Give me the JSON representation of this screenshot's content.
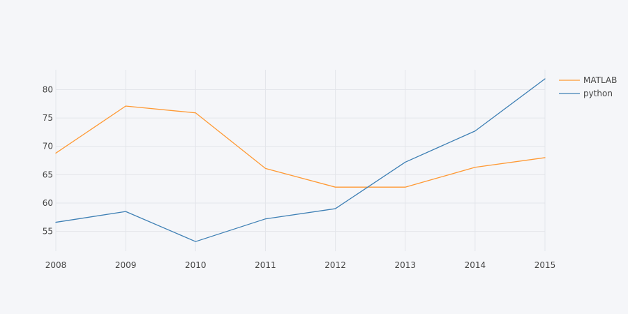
{
  "chart_data": {
    "type": "line",
    "title": "",
    "xlabel": "",
    "ylabel": "",
    "x": [
      2008,
      2009,
      2010,
      2011,
      2012,
      2013,
      2014,
      2015
    ],
    "xlim": [
      2008,
      2015
    ],
    "ylim": [
      51.5,
      83.5
    ],
    "xticks": [
      2008,
      2009,
      2010,
      2011,
      2012,
      2013,
      2014,
      2015
    ],
    "yticks": [
      55,
      60,
      65,
      70,
      75,
      80
    ],
    "grid": true,
    "legend_position": "top-right",
    "series": [
      {
        "name": "MATLAB",
        "color": "#ff9933",
        "values": [
          68.8,
          77.1,
          75.9,
          66.1,
          62.8,
          62.8,
          66.3,
          68.0
        ]
      },
      {
        "name": "python",
        "color": "#3d7fb4",
        "values": [
          56.6,
          58.5,
          53.2,
          57.2,
          59.0,
          67.2,
          72.7,
          81.9
        ]
      }
    ]
  }
}
